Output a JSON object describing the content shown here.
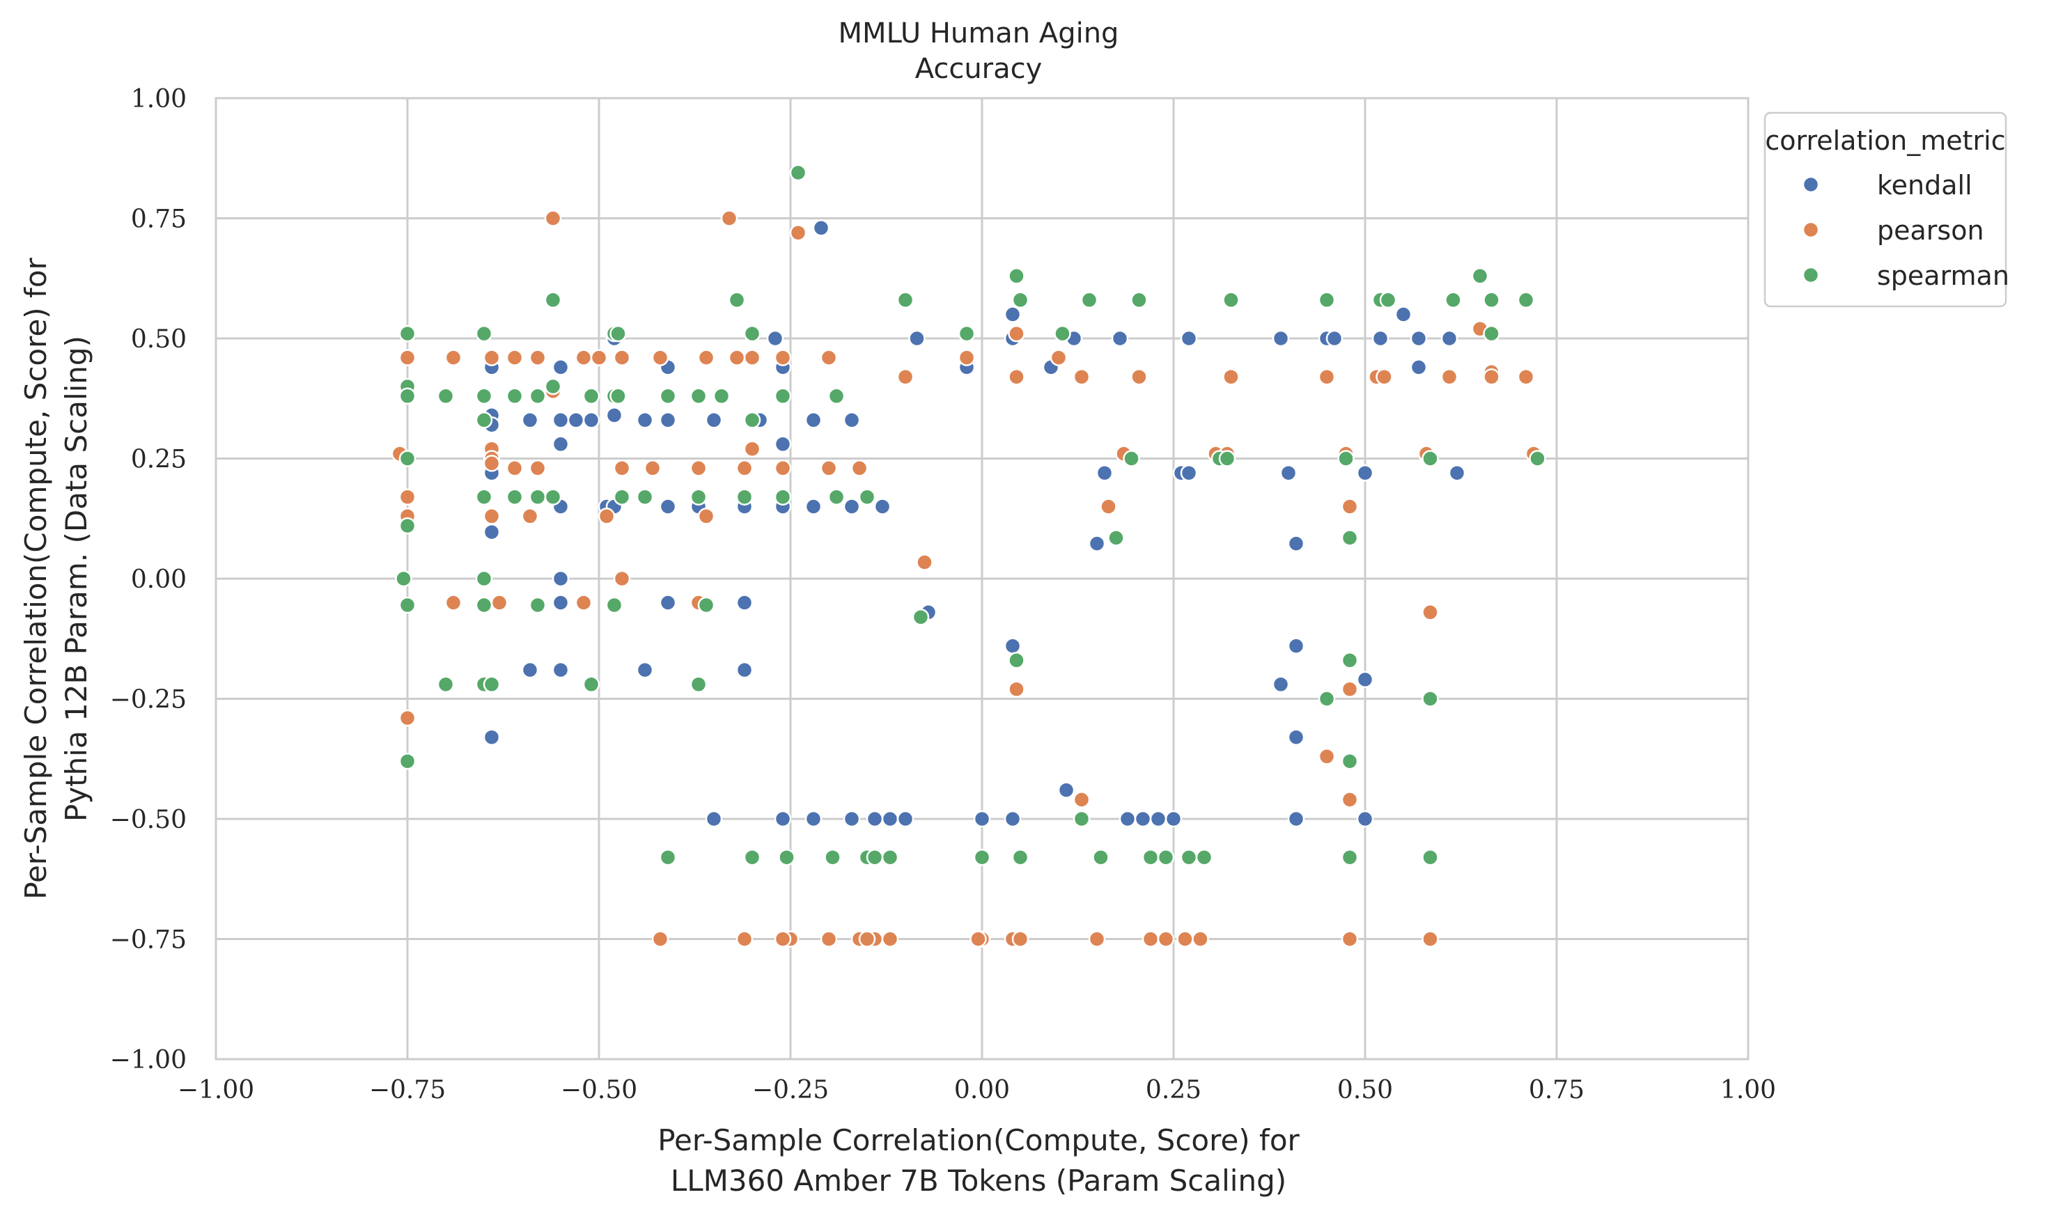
{
  "chart_data": {
    "type": "scatter",
    "title": "MMLU Human Aging",
    "subtitle": "Accuracy",
    "xlabel": "Per-Sample Correlation(Compute, Score) for",
    "xlabel_line2": "LLM360 Amber 7B Tokens (Param Scaling)",
    "ylabel": "Per-Sample Correlation(Compute, Score) for",
    "ylabel_line2": "Pythia 12B Param. (Data Scaling)",
    "xlim": [
      -1.0,
      1.0
    ],
    "ylim": [
      -1.0,
      1.0
    ],
    "xticks": [
      "−1.00",
      "−0.75",
      "−0.50",
      "−0.25",
      "0.00",
      "0.25",
      "0.50",
      "0.75",
      "1.00"
    ],
    "yticks": [
      "−1.00",
      "−0.75",
      "−0.50",
      "−0.25",
      "0.00",
      "0.25",
      "0.50",
      "0.75",
      "1.00"
    ],
    "grid": true,
    "legend": {
      "title": "correlation_metric",
      "placement": "outside-top-right"
    },
    "series": [
      {
        "name": "kendall",
        "color": "#4c72b0",
        "points": [
          [
            -0.64,
            0.44
          ],
          [
            -0.64,
            0.34
          ],
          [
            -0.64,
            0.32
          ],
          [
            -0.64,
            0.22
          ],
          [
            -0.64,
            0.097
          ],
          [
            -0.64,
            -0.33
          ],
          [
            -0.59,
            0.33
          ],
          [
            -0.59,
            -0.19
          ],
          [
            -0.55,
            0.44
          ],
          [
            -0.55,
            0.33
          ],
          [
            -0.55,
            0.28
          ],
          [
            -0.55,
            0.15
          ],
          [
            -0.55,
            0.0
          ],
          [
            -0.55,
            -0.05
          ],
          [
            -0.55,
            -0.19
          ],
          [
            -0.53,
            0.33
          ],
          [
            -0.51,
            0.33
          ],
          [
            -0.49,
            0.15
          ],
          [
            -0.48,
            0.34
          ],
          [
            -0.48,
            0.5
          ],
          [
            -0.48,
            0.15
          ],
          [
            -0.44,
            0.33
          ],
          [
            -0.44,
            -0.19
          ],
          [
            -0.41,
            0.44
          ],
          [
            -0.41,
            0.33
          ],
          [
            -0.41,
            0.15
          ],
          [
            -0.41,
            -0.05
          ],
          [
            -0.37,
            0.15
          ],
          [
            -0.35,
            0.33
          ],
          [
            -0.35,
            -0.5
          ],
          [
            -0.31,
            0.15
          ],
          [
            -0.31,
            -0.05
          ],
          [
            -0.31,
            -0.19
          ],
          [
            -0.29,
            0.33
          ],
          [
            -0.27,
            0.5
          ],
          [
            -0.26,
            0.44
          ],
          [
            -0.26,
            0.28
          ],
          [
            -0.26,
            0.15
          ],
          [
            -0.26,
            -0.5
          ],
          [
            -0.22,
            0.33
          ],
          [
            -0.22,
            0.15
          ],
          [
            -0.22,
            -0.5
          ],
          [
            -0.21,
            0.73
          ],
          [
            -0.17,
            0.33
          ],
          [
            -0.17,
            0.15
          ],
          [
            -0.17,
            -0.5
          ],
          [
            -0.14,
            -0.5
          ],
          [
            -0.13,
            0.15
          ],
          [
            -0.12,
            -0.5
          ],
          [
            -0.1,
            -0.5
          ],
          [
            -0.085,
            0.5
          ],
          [
            -0.07,
            -0.07
          ],
          [
            -0.02,
            0.44
          ],
          [
            0.0,
            -0.5
          ],
          [
            0.04,
            0.55
          ],
          [
            0.04,
            0.5
          ],
          [
            0.04,
            -0.14
          ],
          [
            0.04,
            -0.5
          ],
          [
            0.09,
            0.44
          ],
          [
            0.12,
            0.5
          ],
          [
            0.11,
            -0.44
          ],
          [
            0.13,
            -0.5
          ],
          [
            0.15,
            0.073
          ],
          [
            0.16,
            0.22
          ],
          [
            0.18,
            0.5
          ],
          [
            0.19,
            -0.5
          ],
          [
            0.21,
            -0.5
          ],
          [
            0.23,
            -0.5
          ],
          [
            0.25,
            -0.5
          ],
          [
            0.26,
            0.22
          ],
          [
            0.27,
            0.22
          ],
          [
            0.27,
            0.5
          ],
          [
            0.39,
            0.5
          ],
          [
            0.39,
            -0.22
          ],
          [
            0.4,
            0.22
          ],
          [
            0.41,
            0.073
          ],
          [
            0.41,
            -0.14
          ],
          [
            0.41,
            -0.33
          ],
          [
            0.41,
            -0.5
          ],
          [
            0.45,
            0.5
          ],
          [
            0.46,
            0.5
          ],
          [
            0.5,
            0.22
          ],
          [
            0.5,
            -0.21
          ],
          [
            0.5,
            -0.5
          ],
          [
            0.52,
            0.5
          ],
          [
            0.55,
            0.55
          ],
          [
            0.57,
            0.5
          ],
          [
            0.57,
            0.44
          ],
          [
            0.61,
            0.5
          ],
          [
            0.62,
            0.22
          ]
        ]
      },
      {
        "name": "pearson",
        "color": "#dd8452",
        "points": [
          [
            -0.76,
            0.26
          ],
          [
            -0.75,
            0.46
          ],
          [
            -0.75,
            0.17
          ],
          [
            -0.75,
            0.13
          ],
          [
            -0.75,
            -0.29
          ],
          [
            -0.69,
            0.46
          ],
          [
            -0.69,
            -0.05
          ],
          [
            -0.64,
            0.46
          ],
          [
            -0.64,
            0.27
          ],
          [
            -0.64,
            0.25
          ],
          [
            -0.64,
            0.24
          ],
          [
            -0.64,
            0.13
          ],
          [
            -0.63,
            -0.05
          ],
          [
            -0.61,
            0.46
          ],
          [
            -0.61,
            0.23
          ],
          [
            -0.58,
            0.46
          ],
          [
            -0.58,
            0.23
          ],
          [
            -0.59,
            0.13
          ],
          [
            -0.56,
            0.75
          ],
          [
            -0.56,
            0.39
          ],
          [
            -0.52,
            0.46
          ],
          [
            -0.52,
            -0.05
          ],
          [
            -0.5,
            0.46
          ],
          [
            -0.49,
            0.13
          ],
          [
            -0.47,
            0.46
          ],
          [
            -0.47,
            0.23
          ],
          [
            -0.47,
            0.0
          ],
          [
            -0.42,
            0.46
          ],
          [
            -0.43,
            0.23
          ],
          [
            -0.42,
            -0.75
          ],
          [
            -0.37,
            0.23
          ],
          [
            -0.36,
            0.46
          ],
          [
            -0.36,
            0.13
          ],
          [
            -0.37,
            -0.05
          ],
          [
            -0.33,
            0.75
          ],
          [
            -0.32,
            0.46
          ],
          [
            -0.3,
            0.46
          ],
          [
            -0.3,
            0.27
          ],
          [
            -0.31,
            0.23
          ],
          [
            -0.31,
            -0.75
          ],
          [
            -0.26,
            0.46
          ],
          [
            -0.26,
            0.23
          ],
          [
            -0.25,
            -0.75
          ],
          [
            -0.26,
            -0.75
          ],
          [
            -0.24,
            0.72
          ],
          [
            -0.2,
            0.46
          ],
          [
            -0.2,
            0.23
          ],
          [
            -0.2,
            -0.75
          ],
          [
            -0.16,
            0.23
          ],
          [
            -0.16,
            -0.75
          ],
          [
            -0.14,
            -0.75
          ],
          [
            -0.15,
            -0.75
          ],
          [
            -0.12,
            -0.75
          ],
          [
            -0.1,
            0.42
          ],
          [
            -0.075,
            0.034
          ],
          [
            -0.02,
            0.46
          ],
          [
            0.0,
            -0.75
          ],
          [
            -0.005,
            -0.75
          ],
          [
            0.04,
            -0.75
          ],
          [
            0.045,
            0.51
          ],
          [
            0.045,
            0.42
          ],
          [
            0.045,
            -0.23
          ],
          [
            0.05,
            -0.75
          ],
          [
            0.1,
            0.46
          ],
          [
            0.13,
            0.42
          ],
          [
            0.13,
            -0.46
          ],
          [
            0.15,
            -0.75
          ],
          [
            0.165,
            0.15
          ],
          [
            0.185,
            0.26
          ],
          [
            0.205,
            0.42
          ],
          [
            0.22,
            -0.75
          ],
          [
            0.24,
            -0.75
          ],
          [
            0.265,
            -0.75
          ],
          [
            0.285,
            -0.75
          ],
          [
            0.305,
            0.26
          ],
          [
            0.32,
            0.26
          ],
          [
            0.325,
            0.42
          ],
          [
            0.45,
            0.42
          ],
          [
            0.45,
            -0.37
          ],
          [
            0.475,
            0.26
          ],
          [
            0.48,
            0.15
          ],
          [
            0.48,
            -0.23
          ],
          [
            0.48,
            -0.46
          ],
          [
            0.48,
            -0.75
          ],
          [
            0.515,
            0.42
          ],
          [
            0.525,
            0.42
          ],
          [
            0.58,
            0.26
          ],
          [
            0.585,
            -0.07
          ],
          [
            0.585,
            -0.75
          ],
          [
            0.61,
            0.42
          ],
          [
            0.65,
            0.52
          ],
          [
            0.665,
            0.43
          ],
          [
            0.665,
            0.42
          ],
          [
            0.71,
            0.42
          ],
          [
            0.72,
            0.26
          ]
        ]
      },
      {
        "name": "spearman",
        "color": "#55a868",
        "points": [
          [
            -0.755,
            0.0
          ],
          [
            -0.75,
            0.51
          ],
          [
            -0.75,
            0.4
          ],
          [
            -0.75,
            0.38
          ],
          [
            -0.75,
            0.25
          ],
          [
            -0.75,
            0.11
          ],
          [
            -0.75,
            -0.055
          ],
          [
            -0.75,
            -0.38
          ],
          [
            -0.7,
            0.38
          ],
          [
            -0.7,
            -0.22
          ],
          [
            -0.65,
            0.51
          ],
          [
            -0.65,
            0.38
          ],
          [
            -0.65,
            0.33
          ],
          [
            -0.65,
            0.17
          ],
          [
            -0.65,
            0.0
          ],
          [
            -0.65,
            -0.055
          ],
          [
            -0.65,
            -0.22
          ],
          [
            -0.64,
            -0.22
          ],
          [
            -0.61,
            0.38
          ],
          [
            -0.61,
            0.17
          ],
          [
            -0.58,
            0.38
          ],
          [
            -0.58,
            0.17
          ],
          [
            -0.58,
            -0.055
          ],
          [
            -0.56,
            0.58
          ],
          [
            -0.56,
            0.4
          ],
          [
            -0.56,
            0.17
          ],
          [
            -0.51,
            0.38
          ],
          [
            -0.51,
            -0.22
          ],
          [
            -0.48,
            0.51
          ],
          [
            -0.475,
            0.51
          ],
          [
            -0.48,
            0.38
          ],
          [
            -0.475,
            0.38
          ],
          [
            -0.47,
            0.17
          ],
          [
            -0.48,
            -0.055
          ],
          [
            -0.44,
            0.17
          ],
          [
            -0.41,
            0.38
          ],
          [
            -0.41,
            -0.58
          ],
          [
            -0.37,
            0.38
          ],
          [
            -0.37,
            0.17
          ],
          [
            -0.36,
            -0.055
          ],
          [
            -0.37,
            -0.22
          ],
          [
            -0.34,
            0.38
          ],
          [
            -0.32,
            0.58
          ],
          [
            -0.3,
            0.51
          ],
          [
            -0.3,
            0.33
          ],
          [
            -0.31,
            0.17
          ],
          [
            -0.3,
            -0.58
          ],
          [
            -0.26,
            0.38
          ],
          [
            -0.26,
            0.17
          ],
          [
            -0.255,
            -0.58
          ],
          [
            -0.24,
            0.845
          ],
          [
            -0.19,
            0.38
          ],
          [
            -0.19,
            0.17
          ],
          [
            -0.195,
            -0.58
          ],
          [
            -0.15,
            0.17
          ],
          [
            -0.15,
            -0.58
          ],
          [
            -0.14,
            -0.58
          ],
          [
            -0.12,
            -0.58
          ],
          [
            -0.1,
            0.58
          ],
          [
            -0.08,
            -0.08
          ],
          [
            -0.02,
            0.51
          ],
          [
            0.0,
            -0.58
          ],
          [
            0.045,
            0.63
          ],
          [
            0.05,
            0.58
          ],
          [
            0.045,
            -0.17
          ],
          [
            0.05,
            -0.58
          ],
          [
            0.105,
            0.51
          ],
          [
            0.13,
            -0.5
          ],
          [
            0.14,
            0.58
          ],
          [
            0.155,
            -0.58
          ],
          [
            0.175,
            0.085
          ],
          [
            0.195,
            0.25
          ],
          [
            0.205,
            0.58
          ],
          [
            0.22,
            -0.58
          ],
          [
            0.24,
            -0.58
          ],
          [
            0.27,
            -0.58
          ],
          [
            0.29,
            -0.58
          ],
          [
            0.31,
            0.25
          ],
          [
            0.32,
            0.25
          ],
          [
            0.325,
            0.58
          ],
          [
            0.45,
            0.58
          ],
          [
            0.45,
            -0.25
          ],
          [
            0.475,
            0.25
          ],
          [
            0.48,
            0.085
          ],
          [
            0.48,
            -0.17
          ],
          [
            0.48,
            -0.38
          ],
          [
            0.48,
            -0.58
          ],
          [
            0.52,
            0.58
          ],
          [
            0.53,
            0.58
          ],
          [
            0.585,
            0.25
          ],
          [
            0.585,
            -0.25
          ],
          [
            0.585,
            -0.58
          ],
          [
            0.615,
            0.58
          ],
          [
            0.65,
            0.63
          ],
          [
            0.665,
            0.58
          ],
          [
            0.665,
            0.51
          ],
          [
            0.71,
            0.58
          ],
          [
            0.725,
            0.25
          ]
        ]
      }
    ]
  }
}
